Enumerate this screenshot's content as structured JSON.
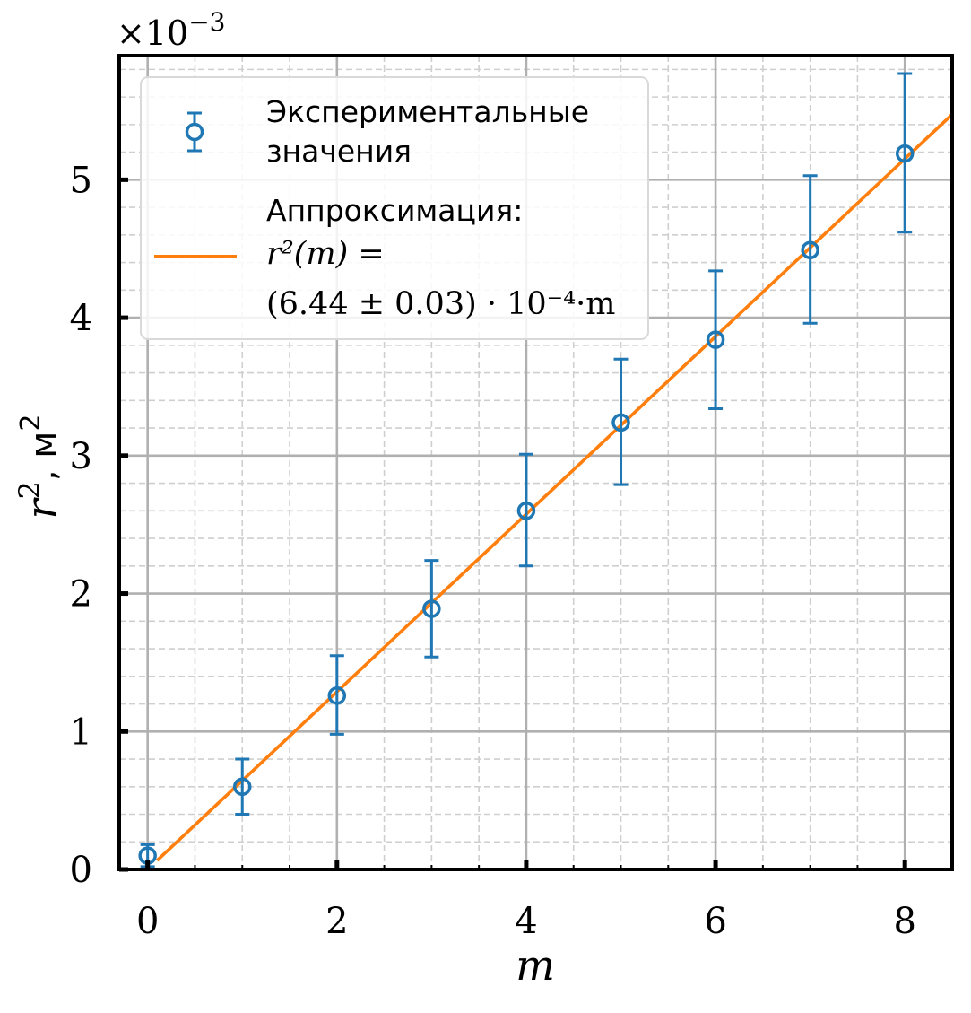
{
  "chart_data": {
    "type": "scatter",
    "xlabel": "m",
    "ylabel": {
      "main": "r",
      "sup": "2",
      "unit": ", м",
      "unit_sup": "2"
    },
    "y_multiplier": {
      "base": "×10",
      "exp": "−3"
    },
    "xlim": [
      -0.3,
      8.5
    ],
    "ylim": [
      0,
      5.9
    ],
    "xticks": [
      0,
      2,
      4,
      6,
      8
    ],
    "xticks_minor": [
      0.5,
      1,
      1.5,
      2.5,
      3,
      3.5,
      4.5,
      5,
      5.5,
      6.5,
      7,
      7.5
    ],
    "yticks": [
      0,
      1,
      2,
      3,
      4,
      5
    ],
    "grid": true,
    "legend_position": "top-left",
    "series": [
      {
        "kind": "errorbar",
        "legend_lines": [
          "Экспериментальные",
          "значения"
        ],
        "color": "#1f77b4",
        "x": [
          0,
          1,
          2,
          3,
          4,
          5,
          6,
          7,
          8
        ],
        "y": [
          0.1,
          0.6,
          1.26,
          1.89,
          2.6,
          3.24,
          3.84,
          4.49,
          5.19
        ],
        "yerr_low": [
          0.08,
          0.2,
          0.28,
          0.35,
          0.4,
          0.45,
          0.5,
          0.53,
          0.57
        ],
        "yerr_high": [
          0.08,
          0.2,
          0.29,
          0.35,
          0.41,
          0.46,
          0.5,
          0.54,
          0.58
        ]
      },
      {
        "kind": "line",
        "legend_lines": [
          "Аппроксимация:",
          "r²(m) =",
          "(6.44 ± 0.03) · 10⁻⁴·m"
        ],
        "color": "#ff7f0e",
        "slope": 0.644,
        "x_range": [
          0.1,
          8.5
        ]
      }
    ]
  }
}
